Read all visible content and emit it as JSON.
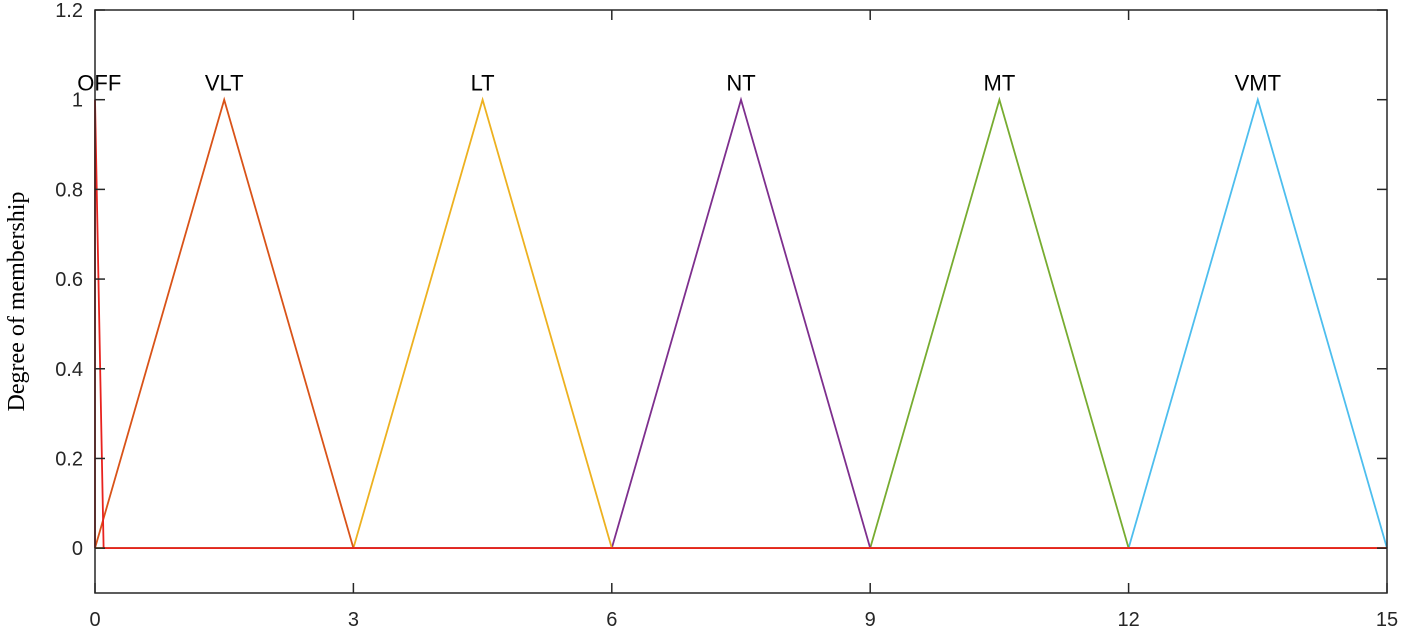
{
  "chart_data": {
    "type": "line",
    "title": "",
    "xlabel": "",
    "ylabel": "Degree of membership",
    "xlim": [
      0,
      15
    ],
    "ylim": [
      -0.1,
      1.2
    ],
    "x_ticks": [
      0,
      3,
      6,
      9,
      12,
      15
    ],
    "y_ticks": [
      0,
      0.2,
      0.4,
      0.6,
      0.8,
      1,
      1.2
    ],
    "x_tick_labels": [
      "0",
      "3",
      "6",
      "9",
      "12",
      "15"
    ],
    "y_tick_labels": [
      "0",
      "0.2",
      "0.4",
      "0.6",
      "0.8",
      "1",
      "1.2"
    ],
    "grid": false,
    "legend": "none",
    "series": [
      {
        "name": "OFF",
        "color": "#e8221e",
        "x": [
          0,
          0,
          0.1,
          15
        ],
        "y": [
          0,
          1,
          0,
          0
        ],
        "label_x": 0.05
      },
      {
        "name": "VLT",
        "color": "#d95319",
        "x": [
          0,
          0,
          1.5,
          3,
          15
        ],
        "y": [
          0,
          0,
          1,
          0,
          0
        ],
        "label_x": 1.5
      },
      {
        "name": "LT",
        "color": "#edb120",
        "x": [
          0,
          3,
          4.5,
          6,
          15
        ],
        "y": [
          0,
          0,
          1,
          0,
          0
        ],
        "label_x": 4.5
      },
      {
        "name": "NT",
        "color": "#7e2f8e",
        "x": [
          0,
          6,
          7.5,
          9,
          15
        ],
        "y": [
          0,
          0,
          1,
          0,
          0
        ],
        "label_x": 7.5
      },
      {
        "name": "MT",
        "color": "#77ac30",
        "x": [
          0,
          9,
          10.5,
          12,
          15
        ],
        "y": [
          0,
          0,
          1,
          0,
          0
        ],
        "label_x": 10.5
      },
      {
        "name": "VMT",
        "color": "#4dbeee",
        "x": [
          0,
          12,
          13.5,
          15
        ],
        "y": [
          0,
          0,
          1,
          0
        ],
        "label_x": 13.5
      }
    ]
  }
}
